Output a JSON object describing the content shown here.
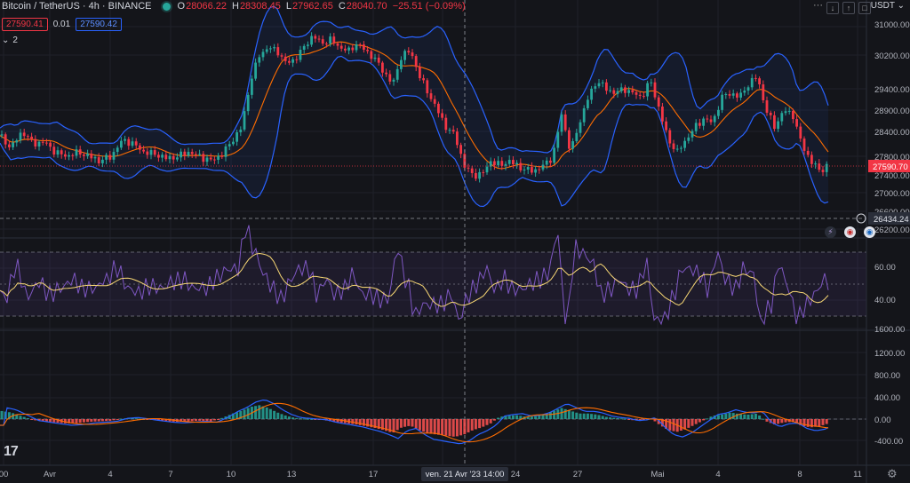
{
  "header": {
    "symbol": "Bitcoin / TetherUS · 4h · BINANCE",
    "o_label": "O",
    "o": "28066.22",
    "h_label": "H",
    "h": "28308.45",
    "l_label": "L",
    "l": "27962.65",
    "c_label": "C",
    "c": "28040.70",
    "change": "−25.51 (−0.09%)"
  },
  "quote": {
    "bid": "27590.41",
    "spread": "0.01",
    "ask": "27590.42"
  },
  "indicators_toggle": {
    "count": "2"
  },
  "currency": "USDT",
  "crosshair_label": "ven. 21 Avr '23   14:00",
  "colors": {
    "background": "#14151a",
    "up": "#26a69a",
    "down": "#f23645",
    "band": "#2962ff",
    "basis": "#ff6d00",
    "rsi": "#7e57c2",
    "rsi_ma": "#f7d774",
    "macd": "#2962ff",
    "signal": "#ff6d00"
  },
  "icons": [
    "tradingview-logo-icon",
    "settings-gear-icon",
    "lightning-event-icon",
    "us-flag-event-icon"
  ],
  "chart_data": [
    {
      "type": "candlestick",
      "panel": "price",
      "title": "Bitcoin / TetherUS · 4h · BINANCE",
      "y_ticks": [
        "31000.00",
        "30200.00",
        "29400.00",
        "28900.00",
        "28400.00",
        "27800.00",
        "27400.00",
        "27000.00",
        "26600.00",
        "26200.00"
      ],
      "price_labels": {
        "last": "27590.70",
        "level": "26434.24"
      },
      "x_ticks": [
        "00",
        "Avr",
        "4",
        "7",
        "10",
        "13",
        "17",
        "20",
        "24",
        "27",
        "Mai",
        "4",
        "8",
        "11"
      ],
      "series": [
        {
          "name": "",
          "points": [
            [
              0,
              28300
            ],
            [
              12,
              28000
            ],
            [
              25,
              28400
            ],
            [
              38,
              28100
            ],
            [
              50,
              28150
            ],
            [
              62,
              27900
            ],
            [
              75,
              27800
            ],
            [
              88,
              27900
            ],
            [
              100,
              27800
            ],
            [
              112,
              27700
            ],
            [
              125,
              27800
            ],
            [
              138,
              28200
            ],
            [
              150,
              28100
            ],
            [
              162,
              27900
            ],
            [
              175,
              27850
            ],
            [
              188,
              27750
            ],
            [
              200,
              27800
            ],
            [
              212,
              27900
            ],
            [
              225,
              27800
            ],
            [
              238,
              27700
            ],
            [
              250,
              27850
            ],
            [
              262,
              28200
            ],
            [
              272,
              28500
            ],
            [
              282,
              29600
            ],
            [
              292,
              30200
            ],
            [
              302,
              30400
            ],
            [
              312,
              30300
            ],
            [
              322,
              30000
            ],
            [
              332,
              30100
            ],
            [
              342,
              30400
            ],
            [
              352,
              30700
            ],
            [
              362,
              30500
            ],
            [
              372,
              30600
            ],
            [
              382,
              30400
            ],
            [
              392,
              30300
            ],
            [
              402,
              30500
            ],
            [
              412,
              30300
            ],
            [
              422,
              30100
            ],
            [
              432,
              29800
            ],
            [
              442,
              29500
            ],
            [
              452,
              30200
            ],
            [
              462,
              30300
            ],
            [
              472,
              29700
            ],
            [
              482,
              29300
            ],
            [
              492,
              28900
            ],
            [
              502,
              28500
            ],
            [
              512,
              28300
            ],
            [
              522,
              27600
            ],
            [
              532,
              27400
            ],
            [
              542,
              27400
            ],
            [
              552,
              27700
            ],
            [
              562,
              27600
            ],
            [
              572,
              27700
            ],
            [
              582,
              27600
            ],
            [
              592,
              27500
            ],
            [
              602,
              27500
            ],
            [
              612,
              27600
            ],
            [
              622,
              27800
            ],
            [
              632,
              28800
            ],
            [
              642,
              27900
            ],
            [
              652,
              28600
            ],
            [
              662,
              29200
            ],
            [
              672,
              29600
            ],
            [
              682,
              29400
            ],
            [
              692,
              29300
            ],
            [
              702,
              29400
            ],
            [
              712,
              29300
            ],
            [
              722,
              29200
            ],
            [
              732,
              29600
            ],
            [
              742,
              28900
            ],
            [
              752,
              28200
            ],
            [
              762,
              27900
            ],
            [
              772,
              28200
            ],
            [
              782,
              28500
            ],
            [
              792,
              28700
            ],
            [
              802,
              28600
            ],
            [
              812,
              29200
            ],
            [
              822,
              29300
            ],
            [
              832,
              29200
            ],
            [
              842,
              29500
            ],
            [
              852,
              29700
            ],
            [
              862,
              28900
            ],
            [
              872,
              28500
            ],
            [
              882,
              28900
            ],
            [
              892,
              28800
            ],
            [
              902,
              28100
            ],
            [
              912,
              27700
            ],
            [
              922,
              27500
            ],
            [
              932,
              27590
            ]
          ]
        }
      ]
    },
    {
      "type": "line",
      "panel": "rsi",
      "y_ticks": [
        "60.00",
        "40.00"
      ]
    },
    {
      "type": "bar",
      "panel": "macd",
      "y_ticks": [
        "1600.00",
        "1200.00",
        "800.00",
        "400.00",
        "0.00",
        "-400.00"
      ],
      "histogram": [
        [
          0,
          150
        ],
        [
          12,
          120
        ],
        [
          25,
          50
        ],
        [
          38,
          -20
        ],
        [
          50,
          -40
        ],
        [
          62,
          -60
        ],
        [
          75,
          -80
        ],
        [
          88,
          -70
        ],
        [
          100,
          -50
        ],
        [
          112,
          -40
        ],
        [
          125,
          -30
        ],
        [
          138,
          10
        ],
        [
          150,
          20
        ],
        [
          162,
          0
        ],
        [
          175,
          -20
        ],
        [
          188,
          -40
        ],
        [
          200,
          -50
        ],
        [
          212,
          -40
        ],
        [
          225,
          -30
        ],
        [
          238,
          -40
        ],
        [
          250,
          20
        ],
        [
          262,
          100
        ],
        [
          272,
          150
        ],
        [
          282,
          220
        ],
        [
          292,
          250
        ],
        [
          302,
          200
        ],
        [
          312,
          120
        ],
        [
          322,
          60
        ],
        [
          332,
          20
        ],
        [
          342,
          10
        ],
        [
          352,
          0
        ],
        [
          362,
          -10
        ],
        [
          372,
          -40
        ],
        [
          382,
          -60
        ],
        [
          392,
          -80
        ],
        [
          402,
          -100
        ],
        [
          412,
          -130
        ],
        [
          422,
          -160
        ],
        [
          432,
          -200
        ],
        [
          442,
          -250
        ],
        [
          452,
          -150
        ],
        [
          462,
          -120
        ],
        [
          472,
          -200
        ],
        [
          482,
          -260
        ],
        [
          492,
          -280
        ],
        [
          502,
          -300
        ],
        [
          512,
          -320
        ],
        [
          522,
          -280
        ],
        [
          532,
          -200
        ],
        [
          542,
          -150
        ],
        [
          552,
          -80
        ],
        [
          562,
          40
        ],
        [
          572,
          60
        ],
        [
          582,
          70
        ],
        [
          592,
          40
        ],
        [
          602,
          50
        ],
        [
          612,
          80
        ],
        [
          622,
          140
        ],
        [
          632,
          200
        ],
        [
          642,
          150
        ],
        [
          652,
          100
        ],
        [
          662,
          100
        ],
        [
          672,
          80
        ],
        [
          682,
          40
        ],
        [
          692,
          20
        ],
        [
          702,
          10
        ],
        [
          712,
          -20
        ],
        [
          722,
          -10
        ],
        [
          732,
          20
        ],
        [
          742,
          -100
        ],
        [
          752,
          -200
        ],
        [
          762,
          -230
        ],
        [
          772,
          -180
        ],
        [
          782,
          -100
        ],
        [
          792,
          -20
        ],
        [
          802,
          60
        ],
        [
          812,
          80
        ],
        [
          822,
          120
        ],
        [
          832,
          90
        ],
        [
          842,
          80
        ],
        [
          852,
          100
        ],
        [
          862,
          -40
        ],
        [
          872,
          -100
        ],
        [
          882,
          -60
        ],
        [
          892,
          -50
        ],
        [
          902,
          -120
        ],
        [
          912,
          -150
        ],
        [
          922,
          -130
        ],
        [
          932,
          -80
        ]
      ]
    }
  ]
}
